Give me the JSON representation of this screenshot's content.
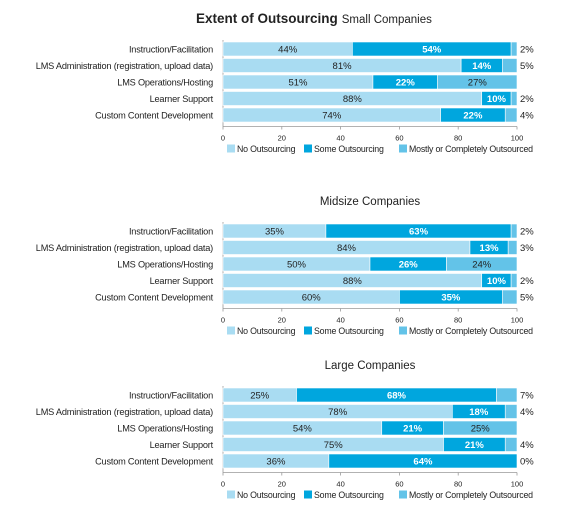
{
  "chart_data": [
    {
      "type": "bar",
      "stacked": true,
      "orientation": "horizontal",
      "title": "Extent of Outsourcing",
      "subtitle": "Small Companies",
      "categories": [
        "Instruction/Facilitation",
        "LMS Administration (registration, upload data)",
        "LMS Operations/Hosting",
        "Learner Support",
        "Custom Content Development"
      ],
      "series": [
        {
          "name": "No Outsourcing",
          "values": [
            44,
            81,
            51,
            88,
            74
          ],
          "labels": [
            "44%",
            "81%",
            "51%",
            "88%",
            "74%"
          ]
        },
        {
          "name": "Some Outsourcing",
          "values": [
            54,
            14,
            22,
            10,
            22
          ],
          "labels": [
            "54%",
            "14%",
            "22%",
            "10%",
            "22%"
          ]
        },
        {
          "name": "Mostly or Completely Outsourced",
          "values": [
            2,
            5,
            27,
            2,
            4
          ],
          "labels": [
            "2%",
            "5%",
            "27%",
            "2%",
            "4%"
          ]
        }
      ],
      "xlim": [
        0,
        100
      ],
      "xticks": [
        "0",
        "20",
        "40",
        "60",
        "80",
        "100"
      ],
      "legend": "bottom"
    },
    {
      "type": "bar",
      "stacked": true,
      "orientation": "horizontal",
      "title": "Midsize Companies",
      "categories": [
        "Instruction/Facilitation",
        "LMS Administration (registration, upload data)",
        "LMS Operations/Hosting",
        "Learner Support",
        "Custom Content Development"
      ],
      "series": [
        {
          "name": "No Outsourcing",
          "values": [
            35,
            84,
            50,
            88,
            60
          ],
          "labels": [
            "35%",
            "84%",
            "50%",
            "88%",
            "60%"
          ]
        },
        {
          "name": "Some Outsourcing",
          "values": [
            63,
            13,
            26,
            10,
            35
          ],
          "labels": [
            "63%",
            "13%",
            "26%",
            "10%",
            "35%"
          ]
        },
        {
          "name": "Mostly or Completely Outsourced",
          "values": [
            2,
            3,
            24,
            2,
            5
          ],
          "labels": [
            "2%",
            "3%",
            "24%",
            "2%",
            "5%"
          ]
        }
      ],
      "xlim": [
        0,
        100
      ],
      "xticks": [
        "0",
        "20",
        "40",
        "60",
        "80",
        "100"
      ],
      "legend": "bottom"
    },
    {
      "type": "bar",
      "stacked": true,
      "orientation": "horizontal",
      "title": "Large Companies",
      "categories": [
        "Instruction/Facilitation",
        "LMS Administration (registration, upload data)",
        "LMS Operations/Hosting",
        "Learner Support",
        "Custom Content Development"
      ],
      "series": [
        {
          "name": "No Outsourcing",
          "values": [
            25,
            78,
            54,
            75,
            36
          ],
          "labels": [
            "25%",
            "78%",
            "54%",
            "75%",
            "36%"
          ]
        },
        {
          "name": "Some Outsourcing",
          "values": [
            68,
            18,
            21,
            21,
            64
          ],
          "labels": [
            "68%",
            "18%",
            "21%",
            "21%",
            "64%"
          ]
        },
        {
          "name": "Mostly or Completely Outsourced",
          "values": [
            7,
            4,
            25,
            4,
            0
          ],
          "labels": [
            "7%",
            "4%",
            "25%",
            "4%",
            "0%"
          ]
        }
      ],
      "xlim": [
        0,
        100
      ],
      "xticks": [
        "0",
        "20",
        "40",
        "60",
        "80",
        "100"
      ],
      "legend": "bottom"
    }
  ],
  "colors": {
    "no_outsourcing": "#a9dcf2",
    "some_outsourcing": "#00a6de",
    "mostly_outsourced": "#63c3e8",
    "text": "#222222",
    "axis": "#999999"
  }
}
